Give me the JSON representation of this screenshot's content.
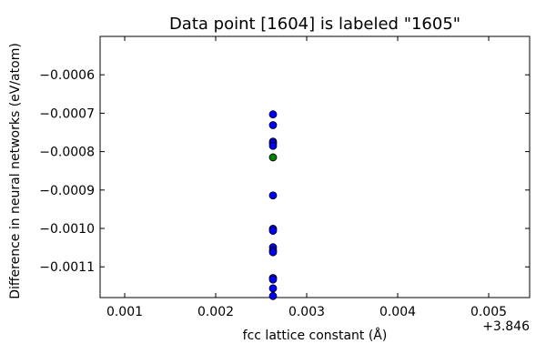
{
  "chart_data": {
    "type": "scatter",
    "title": "Data point [1604] is labeled \"1605\"",
    "xlabel": "fcc lattice constant (Å)",
    "ylabel": "Difference in neural networks (eV/atom)",
    "x_offset_label": "+3.846",
    "xlim": [
      3.84673,
      3.85145
    ],
    "ylim": [
      -0.00118,
      -0.0005
    ],
    "x_ticks": [
      3.847,
      3.848,
      3.849,
      3.85,
      3.851
    ],
    "x_tick_labels": [
      "0.001",
      "0.002",
      "0.003",
      "0.004",
      "0.005"
    ],
    "y_ticks": [
      -0.0006,
      -0.0007,
      -0.0008,
      -0.0009,
      -0.001,
      -0.0011
    ],
    "y_tick_labels": [
      "−0.0006",
      "−0.0007",
      "−0.0008",
      "−0.0009",
      "−0.0010",
      "−0.0011"
    ],
    "grid": false,
    "series": [
      {
        "color": "#0000ff",
        "points": [
          {
            "x": 3.84863,
            "y": -0.000703
          },
          {
            "x": 3.84863,
            "y": -0.000731
          },
          {
            "x": 3.84863,
            "y": -0.000774
          },
          {
            "x": 3.84863,
            "y": -0.000779
          },
          {
            "x": 3.84863,
            "y": -0.000785
          },
          {
            "x": 3.84863,
            "y": -0.000914
          },
          {
            "x": 3.84863,
            "y": -0.001001
          },
          {
            "x": 3.84863,
            "y": -0.001006
          },
          {
            "x": 3.84863,
            "y": -0.001049
          },
          {
            "x": 3.84863,
            "y": -0.001057
          },
          {
            "x": 3.84863,
            "y": -0.001062
          },
          {
            "x": 3.84863,
            "y": -0.001129
          },
          {
            "x": 3.84863,
            "y": -0.001133
          },
          {
            "x": 3.84863,
            "y": -0.001156
          },
          {
            "x": 3.84863,
            "y": -0.001176
          }
        ]
      },
      {
        "color": "#007f00",
        "points": [
          {
            "x": 3.84863,
            "y": -0.000815
          }
        ]
      }
    ]
  }
}
